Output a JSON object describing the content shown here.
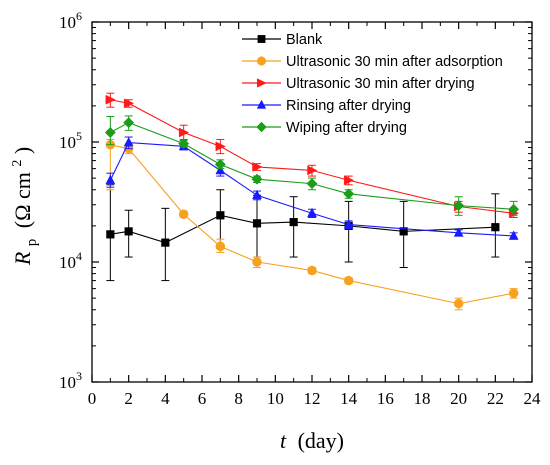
{
  "chart_data": {
    "type": "line",
    "xlabel": {
      "italic": "t",
      "rest": "(day)"
    },
    "ylabel": {
      "italic": "R",
      "subscript": "p",
      "unit_open": "(Ω cm",
      "unit_sup": "2",
      "unit_close": ")"
    },
    "xlim": [
      0,
      24
    ],
    "ylim": [
      1000,
      1000000
    ],
    "y_scale": "log",
    "grid": false,
    "legend_position": "top-right",
    "x_ticks": [
      "0",
      "2",
      "4",
      "6",
      "8",
      "10",
      "12",
      "14",
      "16",
      "18",
      "20",
      "22",
      "24"
    ],
    "y_ticks": [
      {
        "value": 1000,
        "base": "10",
        "exp": "3"
      },
      {
        "value": 10000,
        "base": "10",
        "exp": "4"
      },
      {
        "value": 100000,
        "base": "10",
        "exp": "5"
      },
      {
        "value": 1000000,
        "base": "10",
        "exp": "6"
      }
    ],
    "series": [
      {
        "name": "Blank",
        "color": "#000000",
        "marker": "square",
        "points": [
          {
            "x": 1,
            "y": 17000,
            "lo": 7000,
            "hi": 44000
          },
          {
            "x": 2,
            "y": 18000,
            "lo": 11000,
            "hi": 27000
          },
          {
            "x": 4,
            "y": 14500,
            "lo": 7000,
            "hi": 28000
          },
          {
            "x": 7,
            "y": 24500,
            "lo": 13000,
            "hi": 40000
          },
          {
            "x": 9,
            "y": 21000,
            "lo": 11000,
            "hi": 36000
          },
          {
            "x": 11,
            "y": 21500,
            "lo": 11000,
            "hi": 35000
          },
          {
            "x": 14,
            "y": 20000,
            "lo": 10000,
            "hi": 32000
          },
          {
            "x": 17,
            "y": 18000,
            "lo": 9000,
            "hi": 32000
          },
          {
            "x": 22,
            "y": 19500,
            "lo": 11000,
            "hi": 37000
          }
        ]
      },
      {
        "name": "Ultrasonic 30 min after adsorption",
        "color": "#f7a11f",
        "marker": "circle",
        "points": [
          {
            "x": 1,
            "y": 95000,
            "lo": 40000,
            "hi": 105000
          },
          {
            "x": 2,
            "y": 88000,
            "lo": 80000,
            "hi": 96000
          },
          {
            "x": 5,
            "y": 25000,
            "lo": 23500,
            "hi": 26500
          },
          {
            "x": 7,
            "y": 13500,
            "lo": 12000,
            "hi": 15500
          },
          {
            "x": 9,
            "y": 10000,
            "lo": 9000,
            "hi": 11000
          },
          {
            "x": 12,
            "y": 8500,
            "lo": 8000,
            "hi": 9000
          },
          {
            "x": 14,
            "y": 7000,
            "lo": 6600,
            "hi": 7400
          },
          {
            "x": 20,
            "y": 4500,
            "lo": 4000,
            "hi": 5000
          },
          {
            "x": 23,
            "y": 5500,
            "lo": 5000,
            "hi": 6000
          }
        ]
      },
      {
        "name": "Ultrasonic 30 min after drying",
        "color": "#ff1a1a",
        "marker": "triangle-right",
        "points": [
          {
            "x": 1,
            "y": 225000,
            "lo": 195000,
            "hi": 255000
          },
          {
            "x": 2,
            "y": 210000,
            "lo": 195000,
            "hi": 225000
          },
          {
            "x": 5,
            "y": 120000,
            "lo": 105000,
            "hi": 138000
          },
          {
            "x": 7,
            "y": 92000,
            "lo": 80000,
            "hi": 105000
          },
          {
            "x": 9,
            "y": 62000,
            "lo": 58000,
            "hi": 66000
          },
          {
            "x": 12,
            "y": 58000,
            "lo": 52000,
            "hi": 64000
          },
          {
            "x": 14,
            "y": 48000,
            "lo": 44000,
            "hi": 52000
          },
          {
            "x": 20,
            "y": 29000,
            "lo": 26000,
            "hi": 32000
          },
          {
            "x": 23,
            "y": 25500,
            "lo": 23500,
            "hi": 27500
          }
        ]
      },
      {
        "name": "Rinsing after drying",
        "color": "#1a1aff",
        "marker": "triangle-up",
        "points": [
          {
            "x": 1,
            "y": 48000,
            "lo": 42000,
            "hi": 55000
          },
          {
            "x": 2,
            "y": 99000,
            "lo": 88000,
            "hi": 110000
          },
          {
            "x": 5,
            "y": 92000,
            "lo": 86000,
            "hi": 98000
          },
          {
            "x": 7,
            "y": 58000,
            "lo": 52000,
            "hi": 64000
          },
          {
            "x": 9,
            "y": 36000,
            "lo": 33000,
            "hi": 39000
          },
          {
            "x": 12,
            "y": 25500,
            "lo": 23500,
            "hi": 27500
          },
          {
            "x": 14,
            "y": 20500,
            "lo": 19000,
            "hi": 22000
          },
          {
            "x": 20,
            "y": 17500,
            "lo": 16500,
            "hi": 18500
          },
          {
            "x": 23,
            "y": 16500,
            "lo": 15500,
            "hi": 17500
          }
        ]
      },
      {
        "name": "Wiping after drying",
        "color": "#1a9e1a",
        "marker": "diamond",
        "points": [
          {
            "x": 1,
            "y": 120000,
            "lo": 95000,
            "hi": 163000
          },
          {
            "x": 2,
            "y": 145000,
            "lo": 125000,
            "hi": 165000
          },
          {
            "x": 5,
            "y": 97000,
            "lo": 91000,
            "hi": 103000
          },
          {
            "x": 7,
            "y": 65000,
            "lo": 60000,
            "hi": 71000
          },
          {
            "x": 9,
            "y": 49000,
            "lo": 46000,
            "hi": 52000
          },
          {
            "x": 12,
            "y": 45000,
            "lo": 40000,
            "hi": 50000
          },
          {
            "x": 14,
            "y": 37000,
            "lo": 34000,
            "hi": 40000
          },
          {
            "x": 20,
            "y": 29500,
            "lo": 24500,
            "hi": 35000
          },
          {
            "x": 23,
            "y": 27500,
            "lo": 24500,
            "hi": 32000
          }
        ]
      }
    ]
  }
}
